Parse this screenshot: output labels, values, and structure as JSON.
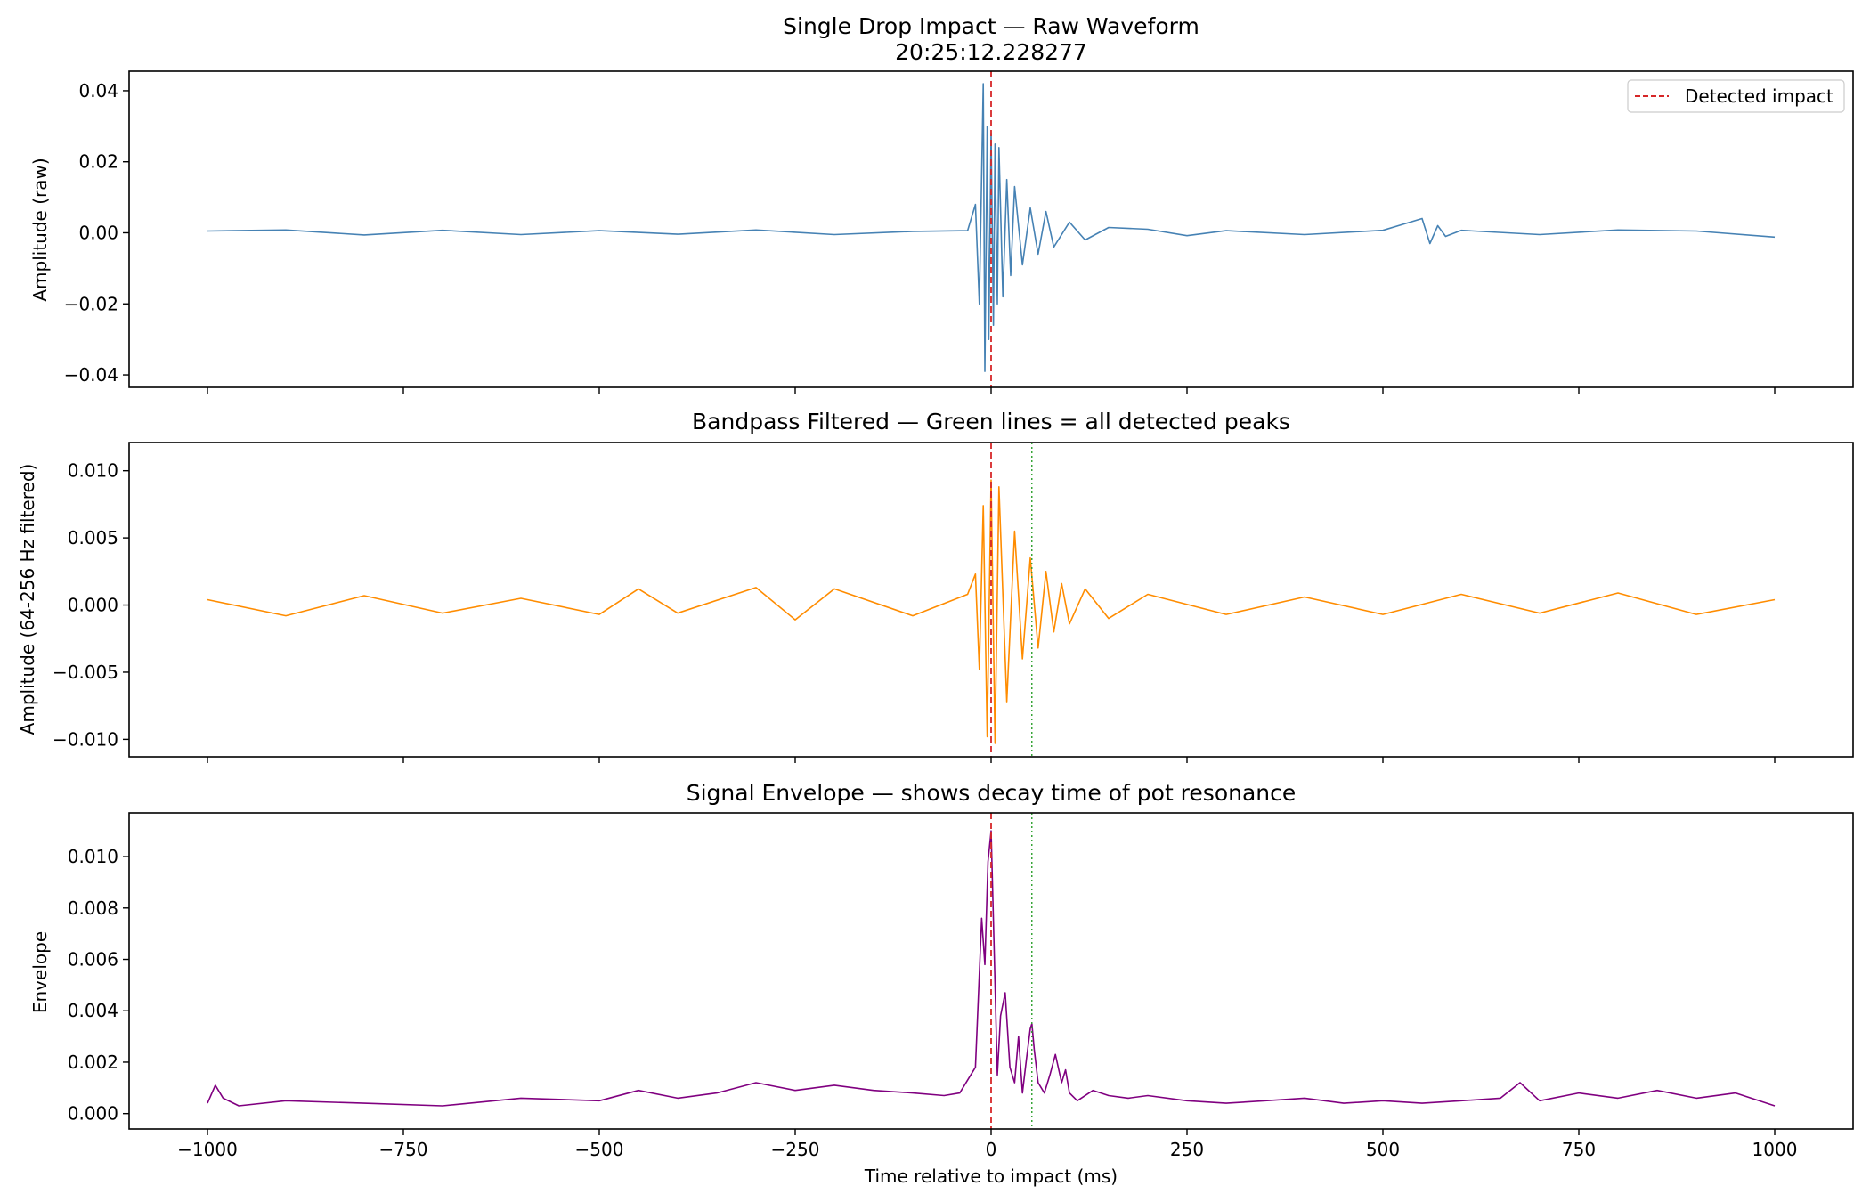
{
  "chart_data": [
    {
      "type": "line",
      "title": "Single Drop Impact — Raw Waveform",
      "subtitle": "20:25:12.228277",
      "xlabel": "",
      "ylabel": "Amplitude (raw)",
      "xlim": [
        -1100,
        1100
      ],
      "ylim": [
        -0.0435,
        0.0455
      ],
      "xticks": [
        -1000,
        -750,
        -500,
        -250,
        0,
        250,
        500,
        750,
        1000
      ],
      "xtick_labels_shown": false,
      "yticks": [
        -0.04,
        -0.02,
        0.0,
        0.02,
        0.04
      ],
      "ytick_labels": [
        "−0.04",
        "−0.02",
        "0.00",
        "0.02",
        "0.04"
      ],
      "grid": false,
      "legend": {
        "placement": "top-right",
        "entries": [
          {
            "label": "Detected impact",
            "color": "#d62728",
            "style": "dashed"
          }
        ]
      },
      "vlines": [
        {
          "x": 0,
          "color": "#d62728",
          "style": "dashed"
        }
      ],
      "series": [
        {
          "color": "#4682b4",
          "x": [
            -1000,
            -900,
            -800,
            -700,
            -600,
            -500,
            -400,
            -300,
            -200,
            -100,
            -30,
            -20,
            -15,
            -10,
            -8,
            -5,
            -3,
            0,
            3,
            5,
            8,
            10,
            15,
            20,
            25,
            30,
            40,
            50,
            60,
            70,
            80,
            100,
            120,
            150,
            200,
            250,
            300,
            400,
            500,
            550,
            560,
            570,
            580,
            600,
            700,
            800,
            900,
            1000
          ],
          "y": [
            0.0005,
            0.0008,
            -0.0006,
            0.0007,
            -0.0005,
            0.0006,
            -0.0004,
            0.0008,
            -0.0005,
            0.0004,
            0.0006,
            0.008,
            -0.02,
            0.042,
            -0.039,
            0.03,
            -0.03,
            0.028,
            -0.026,
            0.025,
            -0.02,
            0.024,
            -0.018,
            0.015,
            -0.012,
            0.013,
            -0.009,
            0.007,
            -0.006,
            0.006,
            -0.004,
            0.003,
            -0.002,
            0.0015,
            0.001,
            -0.0008,
            0.0006,
            -0.0005,
            0.0007,
            0.004,
            -0.003,
            0.002,
            -0.001,
            0.0007,
            -0.0005,
            0.0008,
            0.0005,
            -0.0012
          ]
        }
      ]
    },
    {
      "type": "line",
      "title": "Bandpass Filtered — Green lines = all detected peaks",
      "xlabel": "",
      "ylabel": "Amplitude (64-256 Hz filtered)",
      "xlim": [
        -1100,
        1100
      ],
      "ylim": [
        -0.0113,
        0.0121
      ],
      "xticks": [
        -1000,
        -750,
        -500,
        -250,
        0,
        250,
        500,
        750,
        1000
      ],
      "xtick_labels_shown": false,
      "yticks": [
        -0.01,
        -0.005,
        0.0,
        0.005,
        0.01
      ],
      "ytick_labels": [
        "−0.010",
        "−0.005",
        "0.000",
        "0.005",
        "0.010"
      ],
      "grid": false,
      "vlines": [
        {
          "x": 0,
          "color": "#d62728",
          "style": "dashed"
        },
        {
          "x": 52,
          "color": "#2ca02c",
          "style": "dotted"
        }
      ],
      "series": [
        {
          "color": "#ff8c00",
          "x": [
            -1000,
            -900,
            -800,
            -700,
            -600,
            -500,
            -450,
            -400,
            -300,
            -250,
            -200,
            -100,
            -30,
            -20,
            -15,
            -10,
            -5,
            0,
            5,
            10,
            20,
            30,
            40,
            50,
            60,
            70,
            80,
            90,
            100,
            120,
            150,
            200,
            300,
            400,
            500,
            600,
            700,
            800,
            900,
            1000
          ],
          "y": [
            0.0004,
            -0.0008,
            0.0007,
            -0.0006,
            0.0005,
            -0.0007,
            0.0012,
            -0.0006,
            0.0013,
            -0.0011,
            0.0012,
            -0.0008,
            0.0008,
            0.0023,
            -0.0048,
            0.0074,
            -0.0098,
            0.0093,
            -0.0103,
            0.0088,
            -0.0072,
            0.0055,
            -0.004,
            0.0035,
            -0.0032,
            0.0025,
            -0.002,
            0.0016,
            -0.0014,
            0.0012,
            -0.001,
            0.0008,
            -0.0007,
            0.0006,
            -0.0007,
            0.0008,
            -0.0006,
            0.0009,
            -0.0007,
            0.0004
          ]
        }
      ]
    },
    {
      "type": "line",
      "title": "Signal Envelope — shows decay time of pot resonance",
      "xlabel": "Time relative to impact (ms)",
      "ylabel": "Envelope",
      "xlim": [
        -1100,
        1100
      ],
      "ylim": [
        -0.0006,
        0.0117
      ],
      "xticks": [
        -1000,
        -750,
        -500,
        -250,
        0,
        250,
        500,
        750,
        1000
      ],
      "xtick_labels": [
        "−1000",
        "−750",
        "−500",
        "−250",
        "0",
        "250",
        "500",
        "750",
        "1000"
      ],
      "yticks": [
        0.0,
        0.002,
        0.004,
        0.006,
        0.008,
        0.01
      ],
      "ytick_labels": [
        "0.000",
        "0.002",
        "0.004",
        "0.006",
        "0.008",
        "0.010"
      ],
      "grid": false,
      "vlines": [
        {
          "x": 0,
          "color": "#d62728",
          "style": "dashed"
        },
        {
          "x": 52,
          "color": "#2ca02c",
          "style": "dotted"
        }
      ],
      "series": [
        {
          "color": "#800080",
          "x": [
            -1000,
            -990,
            -980,
            -960,
            -900,
            -800,
            -700,
            -600,
            -500,
            -450,
            -400,
            -350,
            -300,
            -250,
            -200,
            -150,
            -100,
            -60,
            -40,
            -20,
            -12,
            -8,
            -4,
            0,
            3,
            8,
            12,
            18,
            24,
            30,
            35,
            40,
            45,
            50,
            52,
            55,
            60,
            68,
            75,
            82,
            90,
            95,
            100,
            110,
            130,
            150,
            175,
            200,
            250,
            300,
            350,
            400,
            450,
            500,
            550,
            600,
            650,
            675,
            700,
            750,
            800,
            850,
            900,
            950,
            1000
          ],
          "y": [
            0.0004,
            0.0011,
            0.0006,
            0.0003,
            0.0005,
            0.0004,
            0.0003,
            0.0006,
            0.0005,
            0.0009,
            0.0006,
            0.0008,
            0.0012,
            0.0009,
            0.0011,
            0.0009,
            0.0008,
            0.0007,
            0.0008,
            0.0018,
            0.0076,
            0.0058,
            0.0098,
            0.011,
            0.0075,
            0.0015,
            0.0038,
            0.0047,
            0.0018,
            0.0012,
            0.003,
            0.0008,
            0.0021,
            0.0033,
            0.0035,
            0.0025,
            0.0012,
            0.0008,
            0.0015,
            0.0023,
            0.0012,
            0.0017,
            0.0008,
            0.0005,
            0.0009,
            0.0007,
            0.0006,
            0.0007,
            0.0005,
            0.0004,
            0.0005,
            0.0006,
            0.0004,
            0.0005,
            0.0004,
            0.0005,
            0.0006,
            0.0012,
            0.0005,
            0.0008,
            0.0006,
            0.0009,
            0.0006,
            0.0008,
            0.0003
          ]
        }
      ]
    }
  ]
}
